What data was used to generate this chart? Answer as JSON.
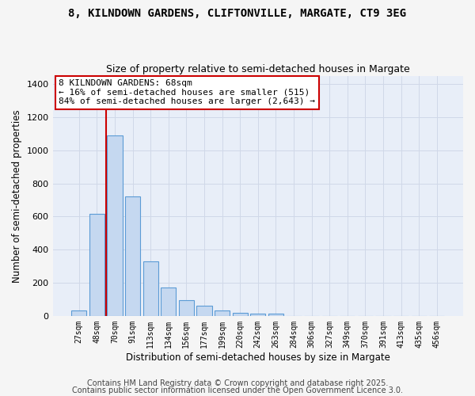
{
  "title": "8, KILNDOWN GARDENS, CLIFTONVILLE, MARGATE, CT9 3EG",
  "subtitle": "Size of property relative to semi-detached houses in Margate",
  "xlabel": "Distribution of semi-detached houses by size in Margate",
  "ylabel": "Number of semi-detached properties",
  "bar_color": "#c5d8f0",
  "bar_edge_color": "#5b9bd5",
  "categories": [
    "27sqm",
    "48sqm",
    "70sqm",
    "91sqm",
    "113sqm",
    "134sqm",
    "156sqm",
    "177sqm",
    "199sqm",
    "220sqm",
    "242sqm",
    "263sqm",
    "284sqm",
    "306sqm",
    "327sqm",
    "349sqm",
    "370sqm",
    "391sqm",
    "413sqm",
    "435sqm",
    "456sqm"
  ],
  "values": [
    35,
    615,
    1090,
    720,
    330,
    170,
    95,
    60,
    35,
    20,
    15,
    15,
    0,
    0,
    0,
    0,
    0,
    0,
    0,
    0,
    0
  ],
  "red_line_color": "#cc0000",
  "annotation_line1": "8 KILNDOWN GARDENS: 68sqm",
  "annotation_line2": "← 16% of semi-detached houses are smaller (515)",
  "annotation_line3": "84% of semi-detached houses are larger (2,643) →",
  "annotation_box_color": "#ffffff",
  "annotation_box_edge_color": "#cc0000",
  "ylim": [
    0,
    1450
  ],
  "yticks": [
    0,
    200,
    400,
    600,
    800,
    1000,
    1200,
    1400
  ],
  "grid_color": "#d0d8e8",
  "bg_color": "#e8eef8",
  "fig_bg_color": "#f5f5f5",
  "footer_line1": "Contains HM Land Registry data © Crown copyright and database right 2025.",
  "footer_line2": "Contains public sector information licensed under the Open Government Licence 3.0.",
  "title_fontsize": 10,
  "subtitle_fontsize": 9,
  "annotation_fontsize": 8,
  "footer_fontsize": 7,
  "red_line_bin": 1.5
}
